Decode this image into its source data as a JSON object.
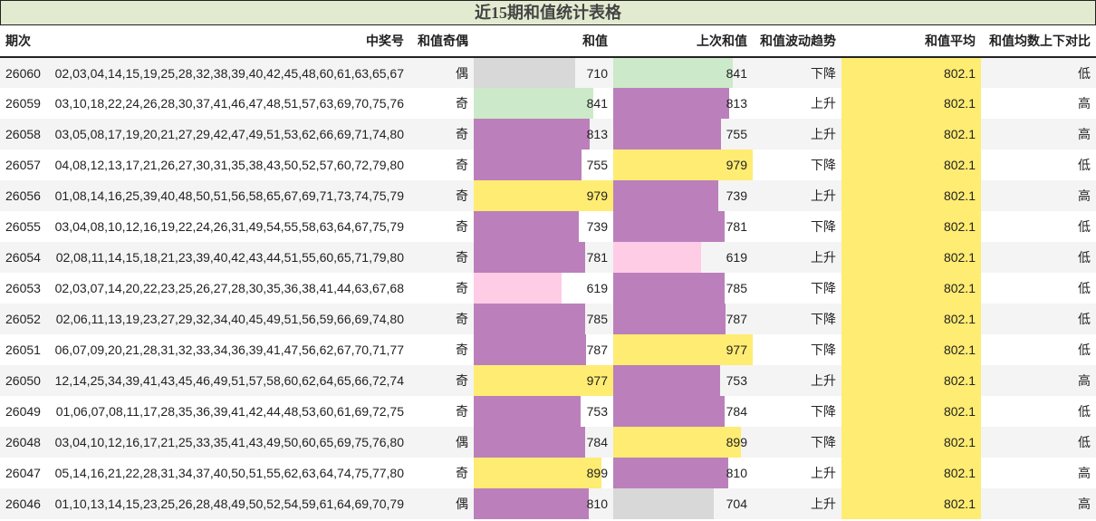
{
  "title": "近15期和值统计表格",
  "colors": {
    "title_bg": "#e2ebd0",
    "row_odd": "#f4f4f4",
    "row_even": "#ffffff",
    "bar_gray": "#d8d8d8",
    "bar_green": "#cce9c9",
    "bar_purple": "#bb80bb",
    "bar_yellow": "#ffec72",
    "bar_pink": "#ffcce6",
    "avg_bg": "#ffec72"
  },
  "bar_max": 979,
  "headers": {
    "issue": "期次",
    "numbers": "中奖号",
    "odd_even": "和值奇偶",
    "sum": "和值",
    "prev_sum": "上次和值",
    "trend": "和值波动趋势",
    "avg": "和值平均",
    "compare": "和值均数上下对比"
  },
  "rows": [
    {
      "issue": "26060",
      "numbers": "02,03,04,14,15,19,25,28,32,38,39,40,42,45,48,60,61,63,65,67",
      "odd_even": "偶",
      "sum": "710",
      "sum_color": "#d8d8d8",
      "prev_sum": "841",
      "prev_color": "#cce9c9",
      "trend": "下降",
      "avg": "802.1",
      "compare": "低"
    },
    {
      "issue": "26059",
      "numbers": "03,10,18,22,24,26,28,30,37,41,46,47,48,51,57,63,69,70,75,76",
      "odd_even": "奇",
      "sum": "841",
      "sum_color": "#cce9c9",
      "prev_sum": "813",
      "prev_color": "#bb80bb",
      "trend": "上升",
      "avg": "802.1",
      "compare": "高"
    },
    {
      "issue": "26058",
      "numbers": "03,05,08,17,19,20,21,27,29,42,47,49,51,53,62,66,69,71,74,80",
      "odd_even": "奇",
      "sum": "813",
      "sum_color": "#bb80bb",
      "prev_sum": "755",
      "prev_color": "#bb80bb",
      "trend": "上升",
      "avg": "802.1",
      "compare": "高"
    },
    {
      "issue": "26057",
      "numbers": "04,08,12,13,17,21,26,27,30,31,35,38,43,50,52,57,60,72,79,80",
      "odd_even": "奇",
      "sum": "755",
      "sum_color": "#bb80bb",
      "prev_sum": "979",
      "prev_color": "#ffec72",
      "trend": "下降",
      "avg": "802.1",
      "compare": "低"
    },
    {
      "issue": "26056",
      "numbers": "01,08,14,16,25,39,40,48,50,51,56,58,65,67,69,71,73,74,75,79",
      "odd_even": "奇",
      "sum": "979",
      "sum_color": "#ffec72",
      "prev_sum": "739",
      "prev_color": "#bb80bb",
      "trend": "上升",
      "avg": "802.1",
      "compare": "高"
    },
    {
      "issue": "26055",
      "numbers": "03,04,08,10,12,16,19,22,24,26,31,49,54,55,58,63,64,67,75,79",
      "odd_even": "奇",
      "sum": "739",
      "sum_color": "#bb80bb",
      "prev_sum": "781",
      "prev_color": "#bb80bb",
      "trend": "下降",
      "avg": "802.1",
      "compare": "低"
    },
    {
      "issue": "26054",
      "numbers": "02,08,11,14,15,18,21,23,39,40,42,43,44,51,55,60,65,71,79,80",
      "odd_even": "奇",
      "sum": "781",
      "sum_color": "#bb80bb",
      "prev_sum": "619",
      "prev_color": "#ffcce6",
      "trend": "上升",
      "avg": "802.1",
      "compare": "低"
    },
    {
      "issue": "26053",
      "numbers": "02,03,07,14,20,22,23,25,26,27,28,30,35,36,38,41,44,63,67,68",
      "odd_even": "奇",
      "sum": "619",
      "sum_color": "#ffcce6",
      "prev_sum": "785",
      "prev_color": "#bb80bb",
      "trend": "下降",
      "avg": "802.1",
      "compare": "低"
    },
    {
      "issue": "26052",
      "numbers": "02,06,11,13,19,23,27,29,32,34,40,45,49,51,56,59,66,69,74,80",
      "odd_even": "奇",
      "sum": "785",
      "sum_color": "#bb80bb",
      "prev_sum": "787",
      "prev_color": "#bb80bb",
      "trend": "下降",
      "avg": "802.1",
      "compare": "低"
    },
    {
      "issue": "26051",
      "numbers": "06,07,09,20,21,28,31,32,33,34,36,39,41,47,56,62,67,70,71,77",
      "odd_even": "奇",
      "sum": "787",
      "sum_color": "#bb80bb",
      "prev_sum": "977",
      "prev_color": "#ffec72",
      "trend": "下降",
      "avg": "802.1",
      "compare": "低"
    },
    {
      "issue": "26050",
      "numbers": "12,14,25,34,39,41,43,45,46,49,51,57,58,60,62,64,65,66,72,74",
      "odd_even": "奇",
      "sum": "977",
      "sum_color": "#ffec72",
      "prev_sum": "753",
      "prev_color": "#bb80bb",
      "trend": "上升",
      "avg": "802.1",
      "compare": "高"
    },
    {
      "issue": "26049",
      "numbers": "01,06,07,08,11,17,28,35,36,39,41,42,44,48,53,60,61,69,72,75",
      "odd_even": "奇",
      "sum": "753",
      "sum_color": "#bb80bb",
      "prev_sum": "784",
      "prev_color": "#bb80bb",
      "trend": "下降",
      "avg": "802.1",
      "compare": "低"
    },
    {
      "issue": "26048",
      "numbers": "03,04,10,12,16,17,21,25,33,35,41,43,49,50,60,65,69,75,76,80",
      "odd_even": "偶",
      "sum": "784",
      "sum_color": "#bb80bb",
      "prev_sum": "899",
      "prev_color": "#ffec72",
      "trend": "下降",
      "avg": "802.1",
      "compare": "低"
    },
    {
      "issue": "26047",
      "numbers": "05,14,16,21,22,28,31,34,37,40,50,51,55,62,63,64,74,75,77,80",
      "odd_even": "奇",
      "sum": "899",
      "sum_color": "#ffec72",
      "prev_sum": "810",
      "prev_color": "#bb80bb",
      "trend": "上升",
      "avg": "802.1",
      "compare": "高"
    },
    {
      "issue": "26046",
      "numbers": "01,10,13,14,15,23,25,26,28,48,49,50,52,54,59,61,64,69,70,79",
      "odd_even": "偶",
      "sum": "810",
      "sum_color": "#bb80bb",
      "prev_sum": "704",
      "prev_color": "#d8d8d8",
      "trend": "上升",
      "avg": "802.1",
      "compare": "高"
    }
  ]
}
